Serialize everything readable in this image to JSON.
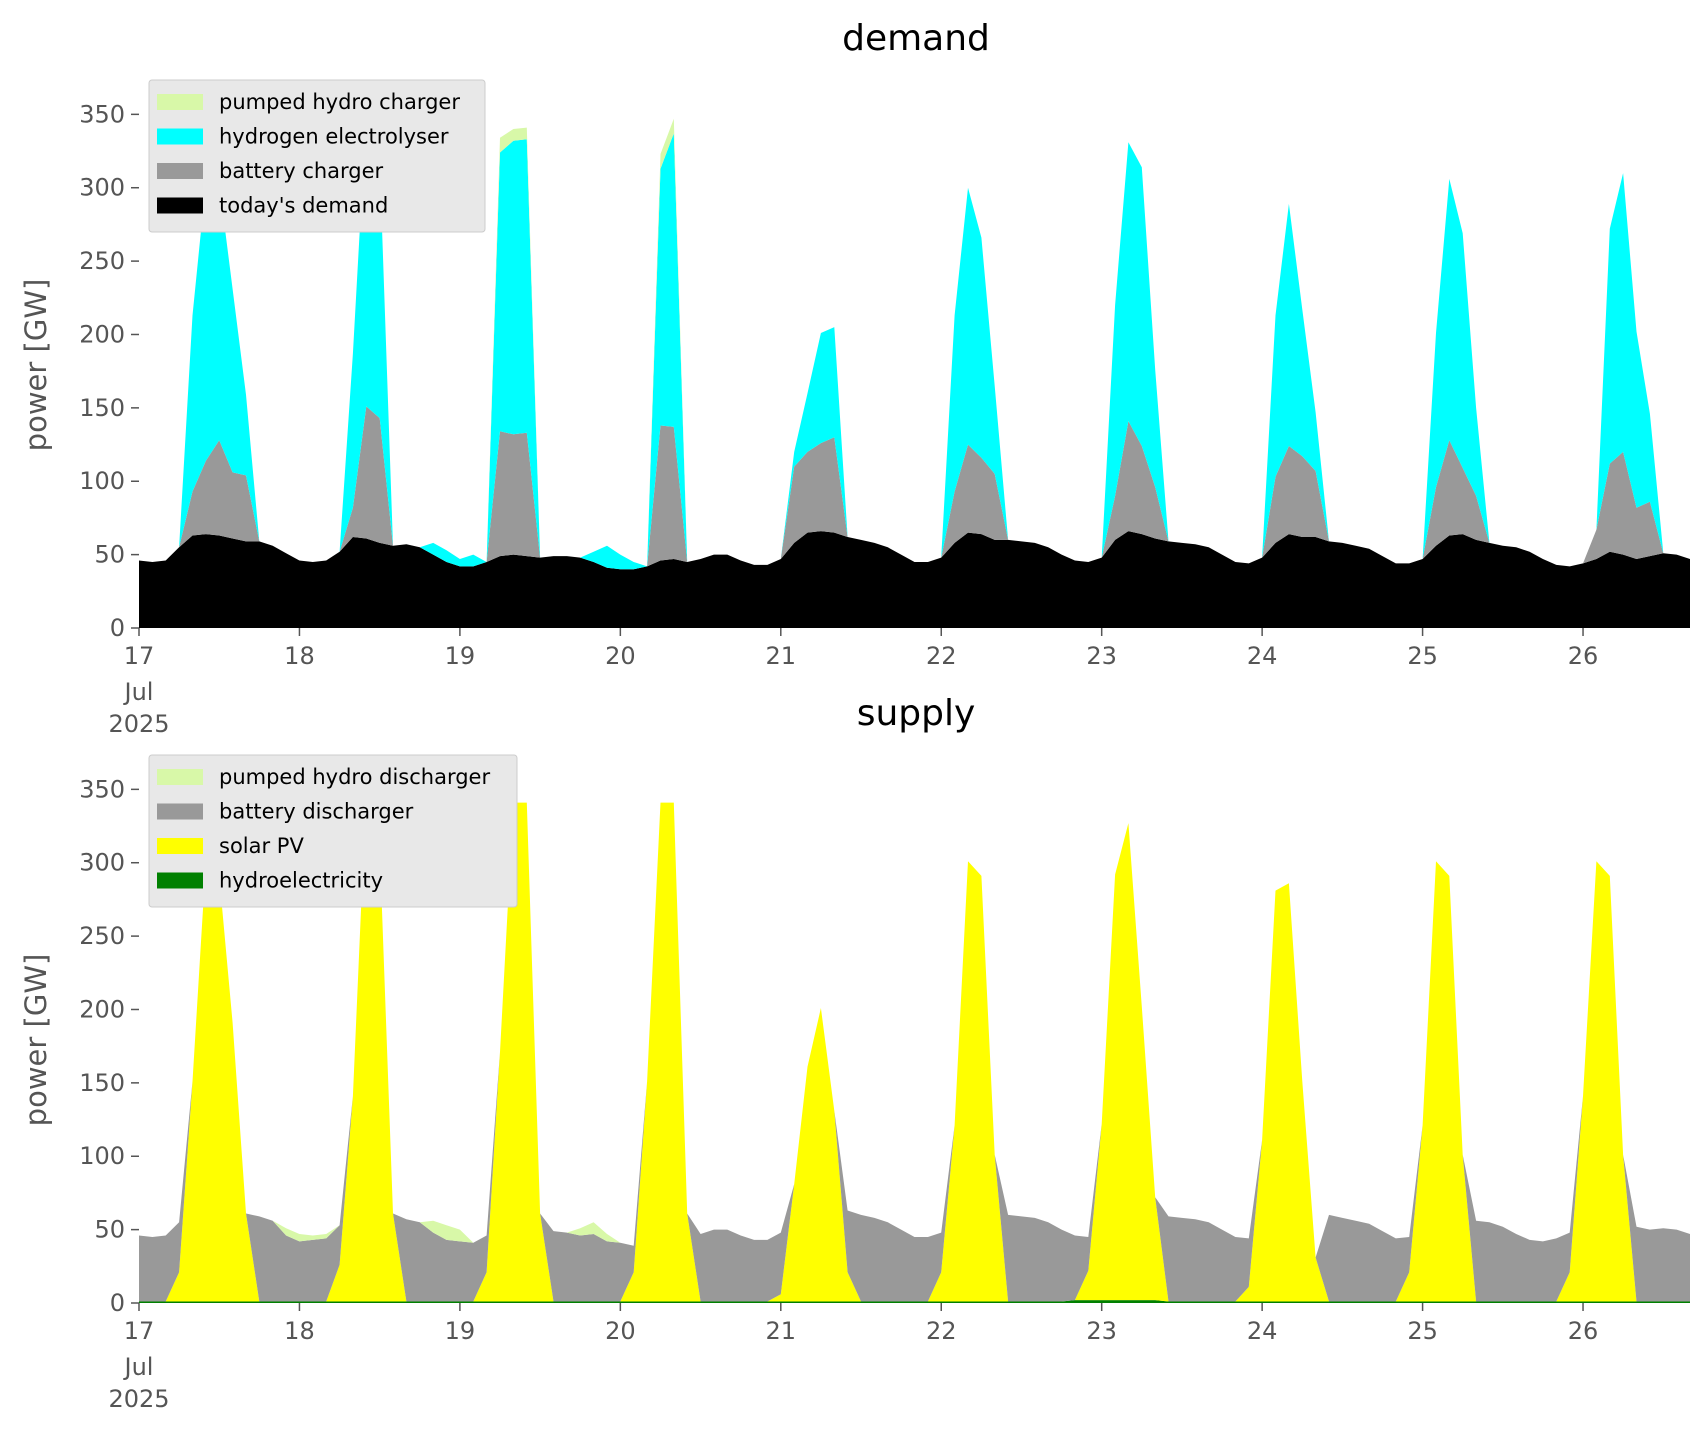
{
  "chart_data": [
    {
      "type": "area",
      "stacked": true,
      "title": "demand",
      "ylabel": "power [GW]",
      "ylim": [
        0,
        370
      ],
      "yticks": [
        "0",
        "50",
        "100",
        "150",
        "200",
        "250",
        "300",
        "350"
      ],
      "xticks": [
        "17",
        "18",
        "19",
        "20",
        "21",
        "22",
        "23",
        "24",
        "25",
        "26"
      ],
      "x_date_label": [
        "Jul",
        "2025"
      ],
      "x_unit": "days, 17 Jul 2025 to 27 Jul 2025, 2-hour steps",
      "grid": false,
      "legend_position": "upper left",
      "legend": [
        "pumped hydro charger",
        "hydrogen electrolyser",
        "battery charger",
        "today's demand"
      ],
      "series": [
        {
          "name": "today's demand",
          "color": "#000000",
          "values": [
            46,
            45,
            46,
            55,
            63,
            64,
            63,
            61,
            59,
            59,
            56,
            51,
            46,
            45,
            46,
            52,
            62,
            61,
            58,
            56,
            57,
            55,
            50,
            45,
            42,
            42,
            45,
            49,
            50,
            49,
            48,
            49,
            49,
            48,
            45,
            41,
            40,
            40,
            42,
            46,
            47,
            45,
            47,
            50,
            50,
            46,
            43,
            43,
            47,
            58,
            65,
            66,
            65,
            62,
            60,
            58,
            55,
            50,
            45,
            45,
            48,
            58,
            65,
            64,
            60,
            60,
            59,
            58,
            55,
            50,
            46,
            45,
            48,
            60,
            66,
            64,
            61,
            59,
            58,
            57,
            55,
            50,
            45,
            44,
            48,
            58,
            64,
            62,
            62,
            59,
            58,
            56,
            54,
            49,
            44,
            44,
            47,
            56,
            63,
            64,
            60,
            58,
            56,
            55,
            52,
            47,
            43,
            42,
            44,
            47,
            52,
            50,
            47,
            49,
            51,
            50,
            47
          ]
        },
        {
          "name": "battery charger",
          "color": "#999999",
          "values": [
            0,
            0,
            0,
            0,
            30,
            50,
            65,
            45,
            45,
            0,
            0,
            0,
            0,
            0,
            0,
            0,
            20,
            90,
            85,
            0,
            0,
            0,
            0,
            0,
            0,
            0,
            0,
            85,
            82,
            84,
            0,
            0,
            0,
            0,
            0,
            0,
            0,
            0,
            0,
            92,
            90,
            0,
            0,
            0,
            0,
            0,
            0,
            0,
            0,
            52,
            55,
            60,
            65,
            0,
            0,
            0,
            0,
            0,
            0,
            0,
            0,
            35,
            60,
            52,
            45,
            0,
            0,
            0,
            0,
            0,
            0,
            0,
            0,
            30,
            75,
            60,
            35,
            0,
            0,
            0,
            0,
            0,
            0,
            0,
            0,
            45,
            60,
            55,
            45,
            0,
            0,
            0,
            0,
            0,
            0,
            0,
            0,
            40,
            65,
            45,
            30,
            0,
            0,
            0,
            0,
            0,
            0,
            0,
            0,
            20,
            60,
            70,
            35,
            37,
            0,
            0,
            0
          ]
        },
        {
          "name": "hydrogen electrolyser",
          "color": "#00ffff",
          "values": [
            0,
            0,
            0,
            0,
            120,
            190,
            175,
            125,
            55,
            0,
            0,
            0,
            0,
            0,
            0,
            0,
            105,
            200,
            175,
            0,
            0,
            0,
            8,
            8,
            5,
            8,
            0,
            190,
            200,
            200,
            0,
            0,
            0,
            0,
            7,
            15,
            10,
            5,
            0,
            175,
            200,
            0,
            0,
            0,
            0,
            0,
            0,
            0,
            0,
            10,
            40,
            75,
            75,
            0,
            0,
            0,
            0,
            0,
            0,
            0,
            0,
            120,
            175,
            150,
            60,
            0,
            0,
            0,
            0,
            0,
            0,
            0,
            0,
            130,
            190,
            190,
            80,
            0,
            0,
            0,
            0,
            0,
            0,
            0,
            0,
            110,
            165,
            100,
            40,
            0,
            0,
            0,
            0,
            0,
            0,
            0,
            0,
            105,
            178,
            160,
            60,
            0,
            0,
            0,
            0,
            0,
            0,
            0,
            0,
            0,
            160,
            190,
            120,
            60,
            0,
            0,
            0
          ]
        },
        {
          "name": "pumped hydro charger",
          "color": "#d8f8a8",
          "values": [
            0,
            0,
            0,
            0,
            0,
            0,
            0,
            0,
            0,
            0,
            0,
            0,
            0,
            0,
            0,
            0,
            0,
            0,
            0,
            0,
            0,
            0,
            0,
            0,
            0,
            0,
            0,
            10,
            8,
            8,
            0,
            0,
            0,
            0,
            0,
            0,
            0,
            0,
            0,
            10,
            10,
            0,
            0,
            0,
            0,
            0,
            0,
            0,
            0,
            0,
            0,
            0,
            0,
            0,
            0,
            0,
            0,
            0,
            0,
            0,
            0,
            0,
            0,
            0,
            0,
            0,
            0,
            0,
            0,
            0,
            0,
            0,
            0,
            0,
            0,
            0,
            0,
            0,
            0,
            0,
            0,
            0,
            0,
            0,
            0,
            0,
            0,
            0,
            0,
            0,
            0,
            0,
            0,
            0,
            0,
            0,
            0,
            0,
            0,
            0,
            0,
            0,
            0,
            0,
            0,
            0,
            0,
            0,
            0,
            0,
            0,
            0,
            0,
            0,
            0,
            0,
            0
          ]
        }
      ]
    },
    {
      "type": "area",
      "stacked": true,
      "title": "supply",
      "ylabel": "power [GW]",
      "ylim": [
        0,
        370
      ],
      "yticks": [
        "0",
        "50",
        "100",
        "150",
        "200",
        "250",
        "300",
        "350"
      ],
      "xticks": [
        "17",
        "18",
        "19",
        "20",
        "21",
        "22",
        "23",
        "24",
        "25",
        "26"
      ],
      "x_date_label": [
        "Jul",
        "2025"
      ],
      "x_unit": "days, 17 Jul 2025 to 27 Jul 2025, 2-hour steps",
      "grid": false,
      "legend_position": "upper left",
      "legend": [
        "pumped hydro discharger",
        "battery discharger",
        "solar PV",
        "hydroelectricity"
      ],
      "series": [
        {
          "name": "hydroelectricity",
          "color": "#008000",
          "values": [
            1,
            1,
            1,
            1,
            1,
            1,
            1,
            1,
            1,
            1,
            1,
            1,
            1,
            1,
            1,
            1,
            1,
            1,
            1,
            1,
            1,
            1,
            1,
            1,
            1,
            1,
            1,
            1,
            1,
            1,
            1,
            1,
            1,
            1,
            1,
            1,
            1,
            1,
            1,
            1,
            1,
            1,
            1,
            1,
            1,
            1,
            1,
            1,
            1,
            1,
            1,
            1,
            1,
            1,
            1,
            1,
            1,
            1,
            1,
            1,
            1,
            1,
            1,
            1,
            1,
            1,
            1,
            1,
            1,
            1,
            2,
            2,
            2,
            2,
            2,
            2,
            2,
            1,
            1,
            1,
            1,
            1,
            1,
            1,
            1,
            1,
            1,
            1,
            1,
            1,
            1,
            1,
            1,
            1,
            1,
            1,
            1,
            1,
            1,
            1,
            1,
            1,
            1,
            1,
            1,
            1,
            1,
            1,
            1,
            1,
            1,
            1,
            1,
            1,
            1,
            1,
            1
          ]
        },
        {
          "name": "solar PV",
          "color": "#ffff00",
          "values": [
            0,
            0,
            0,
            20,
            150,
            300,
            290,
            190,
            60,
            0,
            0,
            0,
            0,
            0,
            0,
            25,
            140,
            350,
            310,
            60,
            0,
            0,
            0,
            0,
            0,
            0,
            20,
            170,
            340,
            340,
            60,
            0,
            0,
            0,
            0,
            0,
            0,
            20,
            150,
            340,
            340,
            60,
            0,
            0,
            0,
            0,
            0,
            0,
            5,
            80,
            160,
            200,
            130,
            20,
            0,
            0,
            0,
            0,
            0,
            0,
            20,
            120,
            300,
            290,
            100,
            0,
            0,
            0,
            0,
            0,
            0,
            20,
            120,
            290,
            325,
            200,
            70,
            0,
            0,
            0,
            0,
            0,
            0,
            10,
            110,
            280,
            285,
            150,
            30,
            0,
            0,
            0,
            0,
            0,
            0,
            20,
            120,
            300,
            290,
            100,
            0,
            0,
            0,
            0,
            0,
            0,
            0,
            20,
            140,
            300,
            290,
            100,
            0,
            0,
            0,
            0,
            0
          ]
        },
        {
          "name": "battery discharger",
          "color": "#999999",
          "values": [
            45,
            44,
            45,
            34,
            0,
            0,
            0,
            0,
            0,
            58,
            55,
            45,
            41,
            42,
            43,
            27,
            0,
            0,
            0,
            0,
            56,
            54,
            47,
            42,
            41,
            40,
            25,
            0,
            0,
            0,
            0,
            48,
            47,
            45,
            46,
            41,
            40,
            18,
            0,
            0,
            0,
            0,
            46,
            49,
            49,
            45,
            42,
            42,
            42,
            0,
            0,
            0,
            0,
            42,
            59,
            57,
            54,
            49,
            44,
            44,
            27,
            0,
            0,
            0,
            0,
            59,
            58,
            57,
            54,
            49,
            44,
            23,
            0,
            0,
            0,
            0,
            0,
            58,
            57,
            56,
            54,
            49,
            44,
            33,
            0,
            0,
            0,
            0,
            0,
            59,
            57,
            55,
            53,
            48,
            43,
            24,
            0,
            0,
            0,
            0,
            55,
            54,
            51,
            46,
            42,
            41,
            43,
            27,
            0,
            0,
            0,
            0,
            51,
            49,
            50,
            49,
            46
          ]
        },
        {
          "name": "pumped hydro discharger",
          "color": "#d8f8a8",
          "values": [
            0,
            0,
            0,
            0,
            0,
            0,
            0,
            0,
            0,
            0,
            0,
            5,
            5,
            3,
            3,
            0,
            0,
            0,
            0,
            0,
            0,
            0,
            8,
            10,
            8,
            0,
            0,
            0,
            0,
            0,
            0,
            0,
            0,
            5,
            8,
            5,
            0,
            0,
            0,
            0,
            0,
            0,
            0,
            0,
            0,
            0,
            0,
            0,
            0,
            0,
            0,
            0,
            0,
            0,
            0,
            0,
            0,
            0,
            0,
            0,
            0,
            0,
            0,
            0,
            0,
            0,
            0,
            0,
            0,
            0,
            0,
            0,
            0,
            0,
            0,
            0,
            0,
            0,
            0,
            0,
            0,
            0,
            0,
            0,
            0,
            0,
            0,
            0,
            0,
            0,
            0,
            0,
            0,
            0,
            0,
            0,
            0,
            0,
            0,
            0,
            0,
            0,
            0,
            0,
            0,
            0,
            0,
            0,
            0,
            0,
            0,
            0,
            0,
            0,
            0,
            0,
            0
          ]
        }
      ]
    }
  ]
}
